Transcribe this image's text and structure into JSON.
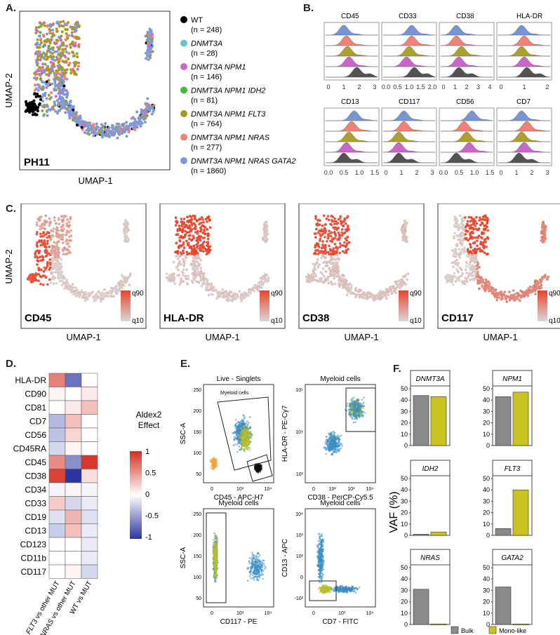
{
  "panel_labels": {
    "a": "A.",
    "b": "B.",
    "c": "C.",
    "d": "D.",
    "e": "E.",
    "f": "F."
  },
  "panel_a": {
    "tag": "PH11",
    "xlabel": "UMAP-1",
    "ylabel": "UMAP-2",
    "legend": [
      {
        "name": "WT",
        "n": "(n = 248)",
        "color": "#000000",
        "italic": false
      },
      {
        "name": "DNMT3A",
        "n": "(n = 28)",
        "color": "#5fc7c9",
        "italic": true
      },
      {
        "name": "DNMT3A NPM1",
        "n": "(n = 146)",
        "color": "#c869c8",
        "italic": true
      },
      {
        "name": "DNMT3A NPM1 IDH2",
        "n": "(n = 81)",
        "color": "#45b842",
        "italic": true
      },
      {
        "name": "DNMT3A NPM1 FLT3",
        "n": "(n = 764)",
        "color": "#a89a1e",
        "italic": true
      },
      {
        "name": "DNMT3A NPM1 NRAS",
        "n": "(n = 277)",
        "color": "#f08377",
        "italic": true
      },
      {
        "name": "DNMT3A NPM1 NRAS GATA2",
        "n": "(n = 1860)",
        "color": "#7e9ad6",
        "italic": true
      }
    ]
  },
  "panel_b": {
    "ridge_colors": [
      "#6f8fd0",
      "#f07a6e",
      "#a99c22",
      "#c55fc4",
      "#4a4a4a"
    ],
    "markers": [
      {
        "name": "CD45",
        "ticks": [
          "0",
          "1",
          "2",
          "3"
        ]
      },
      {
        "name": "CD33",
        "ticks": [
          "0.0",
          "0.5",
          "1.0",
          "1.5",
          "2.0"
        ]
      },
      {
        "name": "CD38",
        "ticks": [
          "0",
          "1",
          "2",
          "3",
          "4"
        ]
      },
      {
        "name": "HLA-DR",
        "ticks": [
          "0",
          "1",
          "2"
        ]
      },
      {
        "name": "CD13",
        "ticks": [
          "0.0",
          "0.5",
          "1.0",
          "1.5"
        ]
      },
      {
        "name": "CD117",
        "ticks": [
          "0",
          "1",
          "2",
          "3"
        ]
      },
      {
        "name": "CD56",
        "ticks": [
          "0.0",
          "0.5",
          "1.0",
          "1.5"
        ]
      },
      {
        "name": "CD7",
        "ticks": [
          "0",
          "1",
          "2",
          "3"
        ]
      }
    ]
  },
  "panel_c": {
    "xlabel": "UMAP-1",
    "ylabel": "UMAP-2",
    "scale_high": "q90",
    "scale_low": "q10",
    "maps": [
      {
        "name": "CD45"
      },
      {
        "name": "HLA-DR"
      },
      {
        "name": "CD38"
      },
      {
        "name": "CD117"
      }
    ]
  },
  "chart_data": [
    {
      "type": "heatmap",
      "title": "Aldex2 Effect",
      "rows": [
        "HLA-DR",
        "CD90",
        "CD81",
        "CD7",
        "CD56",
        "CD45RA",
        "CD45",
        "CD38",
        "CD34",
        "CD33",
        "CD19",
        "CD13",
        "CD123",
        "CD11b",
        "CD117"
      ],
      "columns": [
        "FLT3 vs other MUT",
        "NRAS vs other MUT",
        "WT vs MUT"
      ],
      "values": [
        [
          0.6,
          -0.7,
          0.0
        ],
        [
          0.05,
          0.0,
          0.1
        ],
        [
          0.0,
          0.1,
          0.3
        ],
        [
          -0.35,
          0.3,
          0.0
        ],
        [
          -0.3,
          0.2,
          0.0
        ],
        [
          -0.2,
          0.05,
          0.0
        ],
        [
          0.55,
          -0.55,
          0.95
        ],
        [
          0.9,
          -1.0,
          0.15
        ],
        [
          -0.05,
          0.05,
          -0.05
        ],
        [
          0.25,
          -0.2,
          -0.1
        ],
        [
          -0.15,
          0.35,
          -0.15
        ],
        [
          -0.25,
          0.3,
          -0.1
        ],
        [
          0.0,
          0.0,
          -0.1
        ],
        [
          0.0,
          0.0,
          -0.1
        ],
        [
          0.0,
          0.05,
          -0.2
        ]
      ],
      "legend_ticks": [
        "1",
        "0.5",
        "0",
        "-0.5",
        "-1"
      ],
      "legend_range": [
        -1,
        1
      ]
    },
    {
      "type": "bar",
      "ylabel": "VAF (%)",
      "ylim": [
        0,
        50
      ],
      "yticks": [
        "0",
        "10",
        "20",
        "30",
        "40",
        "50"
      ],
      "series": [
        {
          "name": "Bulk",
          "color": "#8a8a8a"
        },
        {
          "name": "Mono-like",
          "color": "#c8c31d"
        }
      ],
      "facets": [
        {
          "gene": "DNMT3A",
          "values": [
            44,
            43
          ]
        },
        {
          "gene": "NPM1",
          "values": [
            43,
            47
          ]
        },
        {
          "gene": "IDH2",
          "values": [
            1,
            3
          ]
        },
        {
          "gene": "FLT3",
          "values": [
            6,
            40
          ]
        },
        {
          "gene": "NRAS",
          "values": [
            31,
            0.5
          ]
        },
        {
          "gene": "GATA2",
          "values": [
            33,
            0.5
          ]
        }
      ]
    }
  ],
  "panel_e": {
    "plots": [
      {
        "title": "Live - Singlets",
        "xlabel": "CD45 - APC-H7",
        "ylabel": "SSC-A",
        "gate": "Myeloid cells",
        "xticks": [
          "0",
          "10³",
          "10⁴"
        ],
        "yticks": [
          "50",
          "100",
          "150",
          "200",
          "250"
        ]
      },
      {
        "title": "Myeloid cells",
        "xlabel": "CD38 - PerCP-Cy5.5",
        "ylabel": "HLA-DR - PE-Cy7",
        "xticks": [
          "0",
          "10²",
          "10³",
          "10⁴"
        ],
        "yticks": [
          "10³",
          "10⁴",
          "10⁵"
        ]
      },
      {
        "title": "Myeloid cells",
        "xlabel": "CD117 - PE",
        "ylabel": "SSC-A",
        "xticks": [
          "0",
          "10³",
          "10⁴"
        ],
        "yticks": [
          "50",
          "100",
          "150",
          "200",
          "250"
        ]
      },
      {
        "title": "Myeloid cells",
        "xlabel": "CD7 - FITC",
        "ylabel": "CD13 - APC",
        "xticks": [
          "0",
          "10³",
          "10⁴"
        ],
        "yticks": [
          "-10²",
          "0",
          "10²",
          "10³",
          "10⁴"
        ]
      }
    ]
  }
}
